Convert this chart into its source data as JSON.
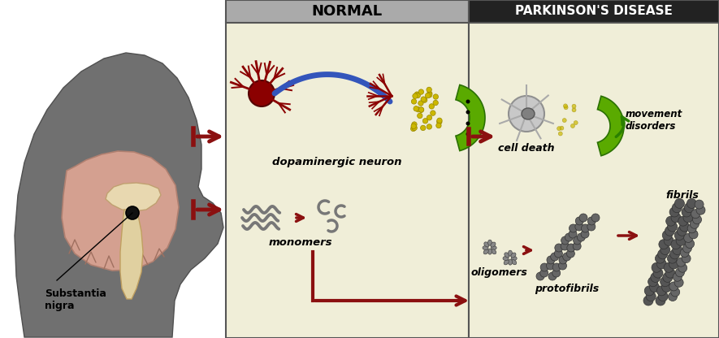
{
  "normal_label": "NORMAL",
  "pd_label": "PARKINSON'S DISEASE",
  "panel_bg": "#f0eed8",
  "header_normal_bg": "#aaaaaa",
  "header_pd_bg": "#222222",
  "arrow_color": "#8b1010",
  "bg_color": "#ffffff",
  "head_color": "#707070",
  "brain_color": "#d4a090",
  "brain_edge": "#b08070",
  "cc_color": "#e8d8b0",
  "bs_color": "#e0d0a0",
  "neuron_color": "#8b0000",
  "axon_color": "#3355bb",
  "green_color": "#5aaa00",
  "green_edge": "#2a7000",
  "gray_neuron": "#c0c0c0",
  "fibril_color": "#606060",
  "fibril_edge": "#383838",
  "labels": {
    "dopaminergic_neuron": "dopaminergic neuron",
    "cell_death": "cell death",
    "movement_disorders": "movement\ndisorders",
    "monomers": "monomers",
    "oligomers": "oligomers",
    "protofibrils": "protofibrils",
    "fibrils": "fibrils",
    "substantia_nigra": "Substantia\nnigra"
  }
}
